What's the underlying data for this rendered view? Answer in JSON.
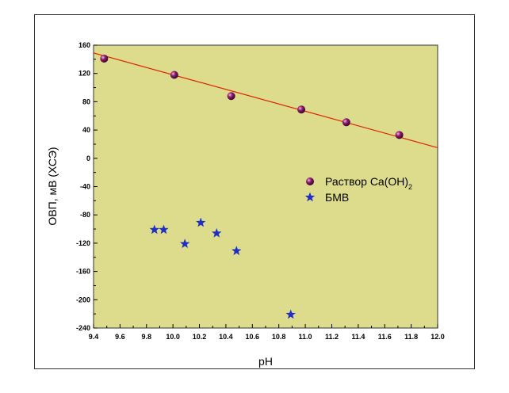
{
  "chart_data": {
    "type": "scatter",
    "xlabel": "pH",
    "ylabel": "ОВП, мВ (ХСЭ)",
    "xlim": [
      9.4,
      12.0
    ],
    "ylim": [
      -240,
      160
    ],
    "xticks": [
      "9.4",
      "9.6",
      "9.8",
      "10.0",
      "10.2",
      "10.4",
      "10.6",
      "10.8",
      "11.0",
      "11.2",
      "11.4",
      "11.6",
      "11.8",
      "12.0"
    ],
    "yticks": [
      "160",
      "120",
      "80",
      "40",
      "0",
      "-40",
      "-80",
      "-120",
      "-160",
      "-200",
      "-240"
    ],
    "plot_background": "#dcdc8c",
    "series": [
      {
        "name": "Раствор Ca(OH)",
        "name_subscript": "2",
        "marker": "sphere",
        "color": "#8b1a6b",
        "points": [
          [
            9.48,
            141
          ],
          [
            10.01,
            118
          ],
          [
            10.44,
            88
          ],
          [
            10.97,
            69
          ],
          [
            11.31,
            51
          ],
          [
            11.71,
            33
          ]
        ]
      },
      {
        "name": "БМВ",
        "marker": "star",
        "color": "#1f2fc4",
        "points": [
          [
            9.86,
            -101
          ],
          [
            9.93,
            -101
          ],
          [
            10.09,
            -121
          ],
          [
            10.21,
            -91
          ],
          [
            10.33,
            -106
          ],
          [
            10.48,
            -131
          ],
          [
            10.89,
            -221
          ]
        ]
      }
    ],
    "fit_line": {
      "color": "#dd2200",
      "from": [
        9.4,
        149
      ],
      "to": [
        12.0,
        15
      ]
    },
    "legend_position": "right-middle"
  }
}
